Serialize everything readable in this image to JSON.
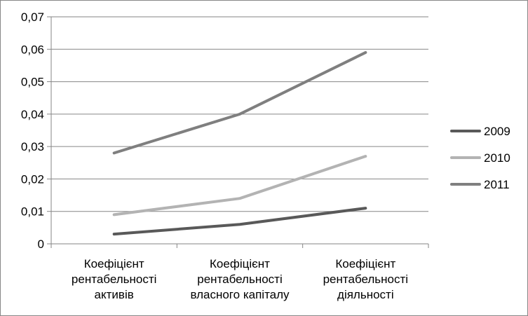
{
  "chart_data": {
    "type": "line",
    "title": "",
    "xlabel": "",
    "ylabel": "",
    "categories": [
      [
        "Коефіцієнт",
        "рентабельності",
        "активів"
      ],
      [
        "Коефіцієнт",
        "рентабельності",
        "власного капіталу"
      ],
      [
        "Коефіцієнт",
        "рентабельності",
        "діяльності"
      ]
    ],
    "ylim": [
      0,
      0.07
    ],
    "yticks": [
      "0",
      "0,01",
      "0,02",
      "0,03",
      "0,04",
      "0,05",
      "0,06",
      "0,07"
    ],
    "grid": true,
    "legend_position": "right",
    "series": [
      {
        "name": "2009",
        "values": [
          0.003,
          0.006,
          0.011
        ],
        "color": "#595959"
      },
      {
        "name": "2010",
        "values": [
          0.009,
          0.014,
          0.027
        ],
        "color": "#b3b3b3"
      },
      {
        "name": "2011",
        "values": [
          0.028,
          0.04,
          0.059
        ],
        "color": "#7f7f7f"
      }
    ]
  }
}
